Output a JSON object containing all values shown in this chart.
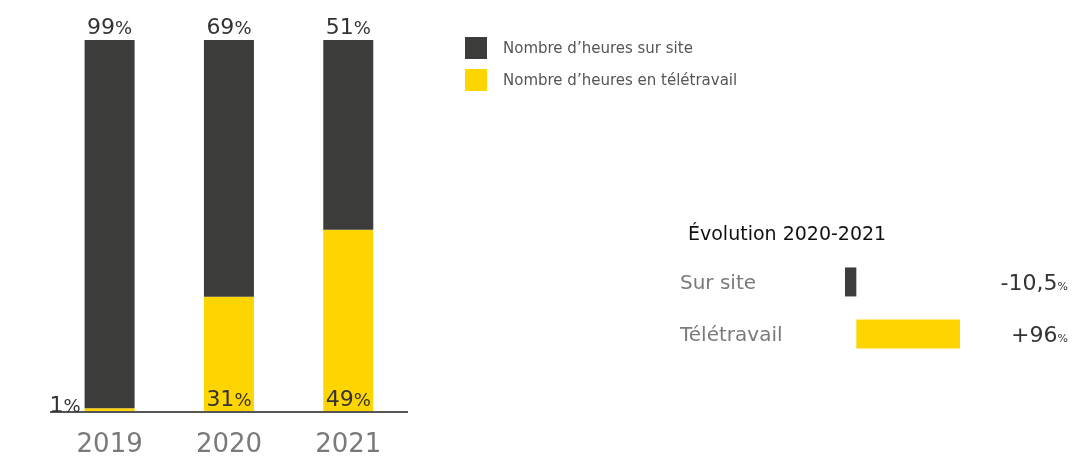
{
  "chart_data": [
    {
      "type": "bar",
      "stacked": true,
      "categories": [
        "2019",
        "2020",
        "2021"
      ],
      "ylim": [
        0,
        100
      ],
      "tick_labels": "x",
      "legend": "right",
      "series": [
        {
          "name": "Nombre d’heures en télétravail",
          "color": "#ffd500",
          "values": [
            1,
            31,
            49
          ],
          "value_labels": [
            "1%",
            "31%",
            "49%"
          ]
        },
        {
          "name": "Nombre d’heures sur site",
          "color": "#3c3c3a",
          "values": [
            99,
            69,
            51
          ],
          "value_labels": [
            "99%",
            "69%",
            "51%"
          ]
        }
      ]
    },
    {
      "type": "bar",
      "orientation": "horizontal",
      "title": "Évolution 2020-2021",
      "categories": [
        "Sur site",
        "Télétravail"
      ],
      "values": [
        -10.5,
        96
      ],
      "colors": [
        "#3c3c3a",
        "#ffd500"
      ],
      "value_labels": [
        "-10,5%",
        "+96%"
      ]
    }
  ]
}
